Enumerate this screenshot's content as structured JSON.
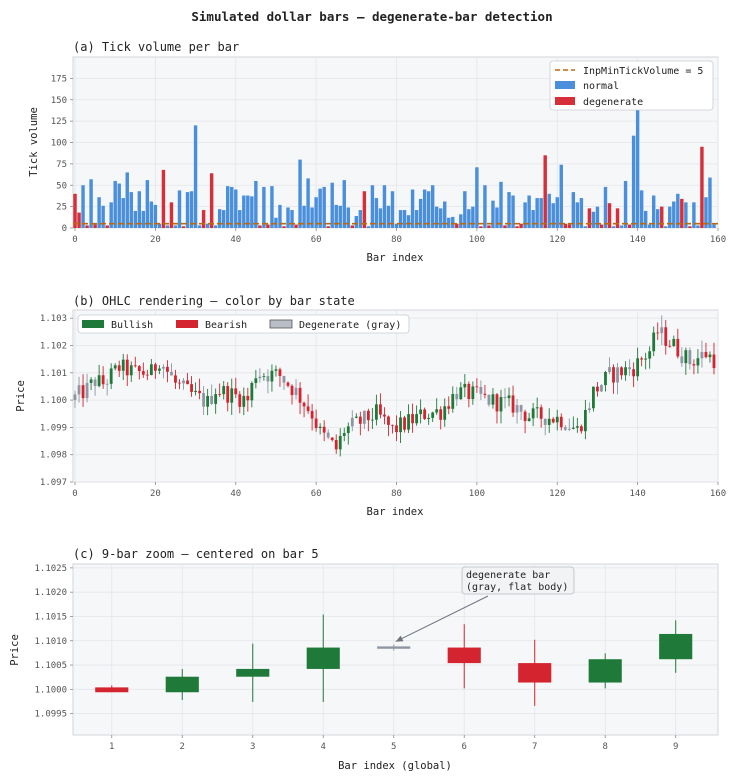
{
  "figure": {
    "suptitle": "Simulated dollar bars — degenerate-bar detection"
  },
  "colors": {
    "normal": "#4a8fdc",
    "degenerate": "#d62f3a",
    "threshold": "#c0690a",
    "bullish": "#1f7a3a",
    "bearish": "#d3242f",
    "degenerate_gray": "#8e96a3",
    "panel_bg": "#f6f7f9",
    "annotation": "#6f747c"
  },
  "chart_data": [
    {
      "type": "bar",
      "title": "(a)  Tick volume per bar",
      "xlabel": "Bar index",
      "ylabel": "Tick volume",
      "xlim": [
        -0.5,
        160
      ],
      "ylim": [
        0,
        200
      ],
      "xticks": [
        "0",
        "20",
        "40",
        "60",
        "80",
        "100",
        "120",
        "140",
        "160"
      ],
      "yticks": [
        "0",
        "25",
        "50",
        "75",
        "100",
        "125",
        "150",
        "175"
      ],
      "threshold": 5,
      "legend_position": "top-right",
      "legend": {
        "threshold": "InpMinTickVolume = 5",
        "normal": "normal",
        "degenerate": "degenerate"
      },
      "degenerate_indices": [
        0,
        1,
        3,
        5,
        8,
        22,
        24,
        27,
        32,
        34,
        46,
        48,
        52,
        55,
        63,
        69,
        72,
        95,
        101,
        103,
        107,
        110,
        111,
        117,
        122,
        123,
        128,
        131,
        133,
        135,
        138,
        146,
        151,
        153,
        156
      ],
      "values": [
        40,
        18,
        50,
        3,
        57,
        4,
        36,
        26,
        3,
        30,
        55,
        52,
        35,
        65,
        42,
        20,
        43,
        20,
        56,
        31,
        27,
        5,
        68,
        3,
        30,
        3,
        44,
        2,
        42,
        43,
        120,
        3,
        21,
        5,
        64,
        3,
        22,
        21,
        49,
        48,
        45,
        21,
        38,
        38,
        37,
        55,
        3,
        48,
        4,
        49,
        12,
        27,
        2,
        24,
        21,
        4,
        80,
        26,
        58,
        24,
        36,
        46,
        48,
        2,
        53,
        27,
        26,
        56,
        24,
        3,
        14,
        21,
        43,
        2,
        50,
        35,
        23,
        50,
        26,
        43,
        5,
        21,
        21,
        15,
        45,
        21,
        34,
        45,
        43,
        50,
        25,
        23,
        31,
        12,
        13,
        5,
        16,
        43,
        22,
        25,
        71,
        2,
        50,
        3,
        32,
        24,
        54,
        3,
        42,
        38,
        2,
        5,
        30,
        38,
        21,
        35,
        35,
        85,
        40,
        29,
        36,
        74,
        5,
        4,
        42,
        30,
        35,
        2,
        23,
        19,
        25,
        4,
        48,
        29,
        2,
        23,
        3,
        55,
        4,
        108,
        190,
        44,
        20,
        4,
        38,
        22,
        25,
        2,
        25,
        31,
        40,
        34,
        30,
        2,
        30,
        3,
        95,
        36,
        59,
        4
      ]
    },
    {
      "type": "candlestick",
      "title": "(b)  OHLC rendering  —  color by bar state",
      "xlabel": "Bar index",
      "ylabel": "Price",
      "xlim": [
        -0.5,
        160
      ],
      "ylim": [
        1.097,
        1.1033
      ],
      "xticks": [
        "0",
        "20",
        "40",
        "60",
        "80",
        "100",
        "120",
        "140",
        "160"
      ],
      "yticks": [
        "1.097",
        "1.098",
        "1.099",
        "1.100",
        "1.101",
        "1.102",
        "1.103"
      ],
      "legend_position": "top-left",
      "legend": {
        "bullish": "Bullish",
        "bearish": "Bearish",
        "degenerate": "Degenerate (gray)"
      },
      "path": [
        [
          0,
          1.1
        ],
        [
          4,
          1.1004
        ],
        [
          6,
          1.1007
        ],
        [
          8,
          1.1006
        ],
        [
          12,
          1.1012
        ],
        [
          16,
          1.101
        ],
        [
          20,
          1.101
        ],
        [
          22,
          1.1015
        ],
        [
          26,
          1.1006
        ],
        [
          30,
          1.1002
        ],
        [
          34,
          1.0999
        ],
        [
          36,
          1.1004
        ],
        [
          40,
          1.1002
        ],
        [
          44,
          1.1
        ],
        [
          46,
          1.101
        ],
        [
          52,
          1.1009
        ],
        [
          56,
          1.1003
        ],
        [
          60,
          1.0995
        ],
        [
          62,
          1.0988
        ],
        [
          66,
          1.0982
        ],
        [
          68,
          1.0989
        ],
        [
          72,
          1.0992
        ],
        [
          76,
          1.0995
        ],
        [
          80,
          1.0989
        ],
        [
          84,
          1.0992
        ],
        [
          88,
          1.0995
        ],
        [
          92,
          1.0996
        ],
        [
          96,
          1.1003
        ],
        [
          100,
          1.1002
        ],
        [
          104,
          1.1
        ],
        [
          110,
          1.0998
        ],
        [
          114,
          1.0994
        ],
        [
          118,
          1.0994
        ],
        [
          122,
          1.0993
        ],
        [
          126,
          1.0989
        ],
        [
          128,
          1.0995
        ],
        [
          130,
          1.1003
        ],
        [
          134,
          1.1009
        ],
        [
          138,
          1.1011
        ],
        [
          140,
          1.1012
        ],
        [
          144,
          1.1018
        ],
        [
          146,
          1.1025
        ],
        [
          150,
          1.102
        ],
        [
          154,
          1.1014
        ],
        [
          158,
          1.1017
        ],
        [
          160,
          1.1015
        ]
      ]
    },
    {
      "type": "candlestick",
      "title": "(c)  9-bar zoom  —  centered on bar 5",
      "xlabel": "Bar index (global)",
      "ylabel": "Price",
      "xlim": [
        0.45,
        9.6
      ],
      "ylim": [
        1.09906,
        1.10258
      ],
      "xticks": [
        "1",
        "2",
        "3",
        "4",
        "5",
        "6",
        "7",
        "8",
        "9"
      ],
      "yticks": [
        "1.0995",
        "1.1000",
        "1.1005",
        "1.1010",
        "1.1015",
        "1.1020",
        "1.1025"
      ],
      "annotation": {
        "text_line1": "degenerate bar",
        "text_line2": "(gray, flat body)",
        "target_bar": 5
      },
      "bars": [
        {
          "x": 1,
          "open": 1.10004,
          "high": 1.10008,
          "low": 1.09994,
          "close": 1.09994
        },
        {
          "x": 2,
          "open": 1.09994,
          "high": 1.10042,
          "low": 1.09978,
          "close": 1.10026
        },
        {
          "x": 3,
          "open": 1.10026,
          "high": 1.10094,
          "low": 1.09974,
          "close": 1.10042
        },
        {
          "x": 4,
          "open": 1.10042,
          "high": 1.10154,
          "low": 1.09974,
          "close": 1.10086
        },
        {
          "x": 5,
          "open": 1.10086,
          "high": 1.10086,
          "low": 1.10086,
          "close": 1.10086,
          "degenerate": true
        },
        {
          "x": 6,
          "open": 1.10086,
          "high": 1.10134,
          "low": 1.10002,
          "close": 1.10054
        },
        {
          "x": 7,
          "open": 1.10054,
          "high": 1.10102,
          "low": 1.09966,
          "close": 1.10014
        },
        {
          "x": 8,
          "open": 1.10014,
          "high": 1.10074,
          "low": 1.10002,
          "close": 1.10062
        },
        {
          "x": 9,
          "open": 1.10062,
          "high": 1.10142,
          "low": 1.10034,
          "close": 1.10114
        }
      ]
    }
  ]
}
